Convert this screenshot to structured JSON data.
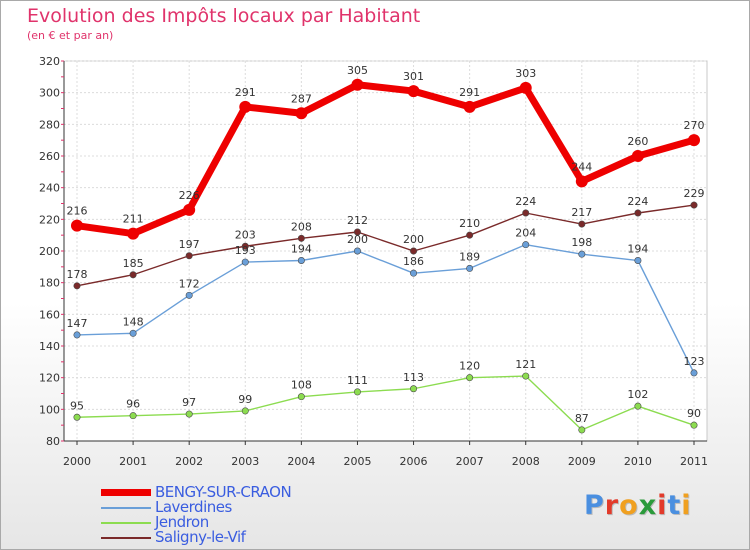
{
  "header": {
    "title": "Evolution des Impôts locaux par Habitant",
    "subtitle": "(en € et par an)"
  },
  "logo": {
    "text": "Proxiti",
    "colors": [
      "#4a8fe0",
      "#e23a2a",
      "#f0a020",
      "#2a9a3a",
      "#e23a2a",
      "#4a8fe0",
      "#f0a020"
    ]
  },
  "chart_data": {
    "type": "line",
    "x": [
      "2000",
      "2001",
      "2002",
      "2003",
      "2004",
      "2005",
      "2006",
      "2007",
      "2008",
      "2009",
      "2010",
      "2011"
    ],
    "ylim": [
      80,
      320
    ],
    "yticks": [
      80,
      100,
      120,
      140,
      160,
      180,
      200,
      220,
      240,
      260,
      280,
      300,
      320
    ],
    "grid": true,
    "legend_position": "bottom-left",
    "series": [
      {
        "name": "BENGY-SUR-CRAON",
        "color": "#ee0000",
        "values": [
          216,
          211,
          226,
          291,
          287,
          305,
          301,
          291,
          303,
          244,
          260,
          270
        ]
      },
      {
        "name": "Laverdines",
        "color": "#6a9fd8",
        "values": [
          147,
          148,
          172,
          193,
          194,
          200,
          186,
          189,
          204,
          198,
          194,
          123
        ]
      },
      {
        "name": "Jendron",
        "color": "#8cdc50",
        "values": [
          95,
          96,
          97,
          99,
          108,
          111,
          113,
          120,
          121,
          87,
          102,
          90
        ]
      },
      {
        "name": "Saligny-le-Vif",
        "color": "#7a2a2a",
        "values": [
          178,
          185,
          197,
          203,
          208,
          212,
          200,
          210,
          224,
          217,
          224,
          229
        ]
      }
    ]
  }
}
